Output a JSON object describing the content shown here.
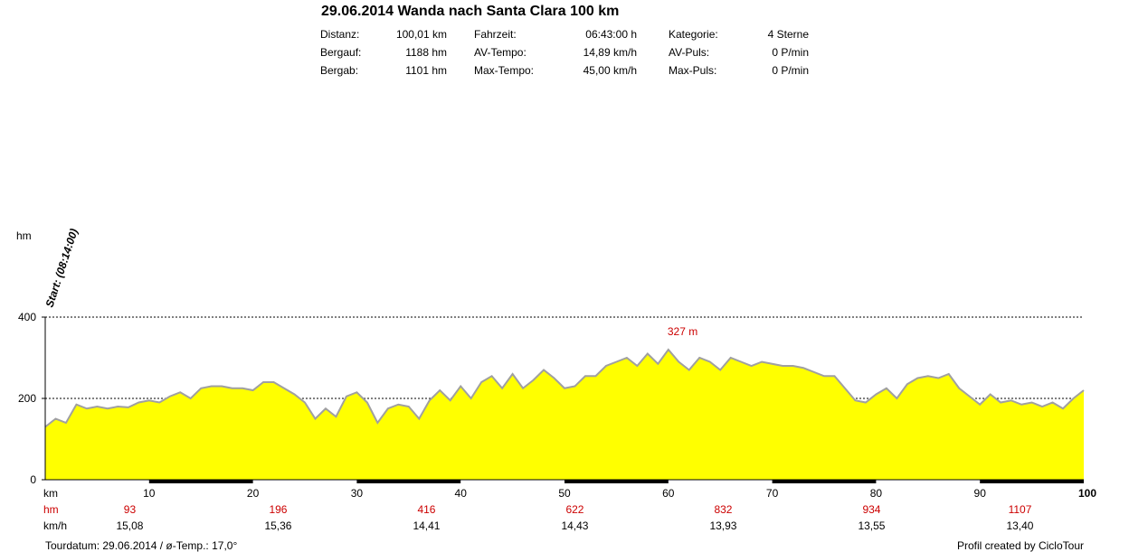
{
  "header": {
    "title": "29.06.2014 Wanda nach Santa Clara 100 km",
    "stats": [
      [
        {
          "label": "Distanz:",
          "value": "100,01 km"
        },
        {
          "label": "Fahrzeit:",
          "value": "06:43:00 h"
        },
        {
          "label": "Kategorie:",
          "value": "4 Sterne"
        }
      ],
      [
        {
          "label": "Bergauf:",
          "value": "1188 hm"
        },
        {
          "label": "AV-Tempo:",
          "value": "14,89 km/h"
        },
        {
          "label": "AV-Puls:",
          "value": "0 P/min"
        }
      ],
      [
        {
          "label": "Bergab:",
          "value": "1101 hm"
        },
        {
          "label": "Max-Tempo:",
          "value": "45,00 km/h"
        },
        {
          "label": "Max-Puls:",
          "value": "0 P/min"
        }
      ]
    ]
  },
  "colors": {
    "fill": "#ffff00",
    "line": "#a0a0a0",
    "accent": "#cc0000"
  },
  "chart_data": {
    "type": "area",
    "ylabel": "hm",
    "xlabel": "km",
    "xlim": [
      0,
      100
    ],
    "ylim": [
      0,
      400
    ],
    "yticks": [
      0,
      200,
      400
    ],
    "xticks": [
      10,
      20,
      30,
      40,
      50,
      60,
      70,
      80,
      90,
      100
    ],
    "grid_dashed_at": [
      200,
      400
    ],
    "start_label": "Start: (08:14:00)",
    "peak": {
      "x": 60.5,
      "y": 327,
      "label": "327 m"
    },
    "x": [
      0,
      1,
      2,
      3,
      4,
      5,
      6,
      7,
      8,
      9,
      10,
      11,
      12,
      13,
      14,
      15,
      16,
      17,
      18,
      19,
      20,
      21,
      22,
      23,
      24,
      25,
      26,
      27,
      28,
      29,
      30,
      31,
      32,
      33,
      34,
      35,
      36,
      37,
      38,
      39,
      40,
      41,
      42,
      43,
      44,
      45,
      46,
      47,
      48,
      49,
      50,
      51,
      52,
      53,
      54,
      55,
      56,
      57,
      58,
      59,
      60,
      61,
      62,
      63,
      64,
      65,
      66,
      67,
      68,
      69,
      70,
      71,
      72,
      73,
      74,
      75,
      76,
      77,
      78,
      79,
      80,
      81,
      82,
      83,
      84,
      85,
      86,
      87,
      88,
      89,
      90,
      91,
      92,
      93,
      94,
      95,
      96,
      97,
      98,
      99,
      100
    ],
    "y": [
      130,
      150,
      140,
      185,
      175,
      180,
      175,
      180,
      178,
      190,
      195,
      190,
      205,
      215,
      200,
      225,
      230,
      230,
      225,
      225,
      220,
      240,
      240,
      225,
      210,
      190,
      150,
      175,
      155,
      205,
      215,
      190,
      140,
      175,
      185,
      180,
      150,
      195,
      220,
      195,
      230,
      200,
      240,
      255,
      225,
      260,
      225,
      245,
      270,
      250,
      225,
      230,
      255,
      255,
      280,
      290,
      300,
      280,
      310,
      285,
      320,
      290,
      270,
      300,
      290,
      270,
      300,
      290,
      280,
      290,
      285,
      280,
      280,
      275,
      265,
      255,
      255,
      225,
      195,
      190,
      210,
      225,
      200,
      235,
      250,
      255,
      250,
      260,
      225,
      205,
      185,
      210,
      190,
      195,
      185,
      190,
      180,
      190,
      175,
      200,
      220
    ],
    "hm_by_segment": [
      "93",
      "196",
      "416",
      "622",
      "832",
      "934",
      "1107"
    ],
    "speed_by_segment": [
      "15,08",
      "15,36",
      "14,41",
      "14,43",
      "13,93",
      "13,55",
      "13,40"
    ],
    "row_labels": {
      "km": "km",
      "hm": "hm",
      "kmh": "km/h"
    }
  },
  "footer": {
    "left": "Tourdatum: 29.06.2014  /  ø-Temp.: 17,0°",
    "right": "Profil created by CicloTour"
  }
}
